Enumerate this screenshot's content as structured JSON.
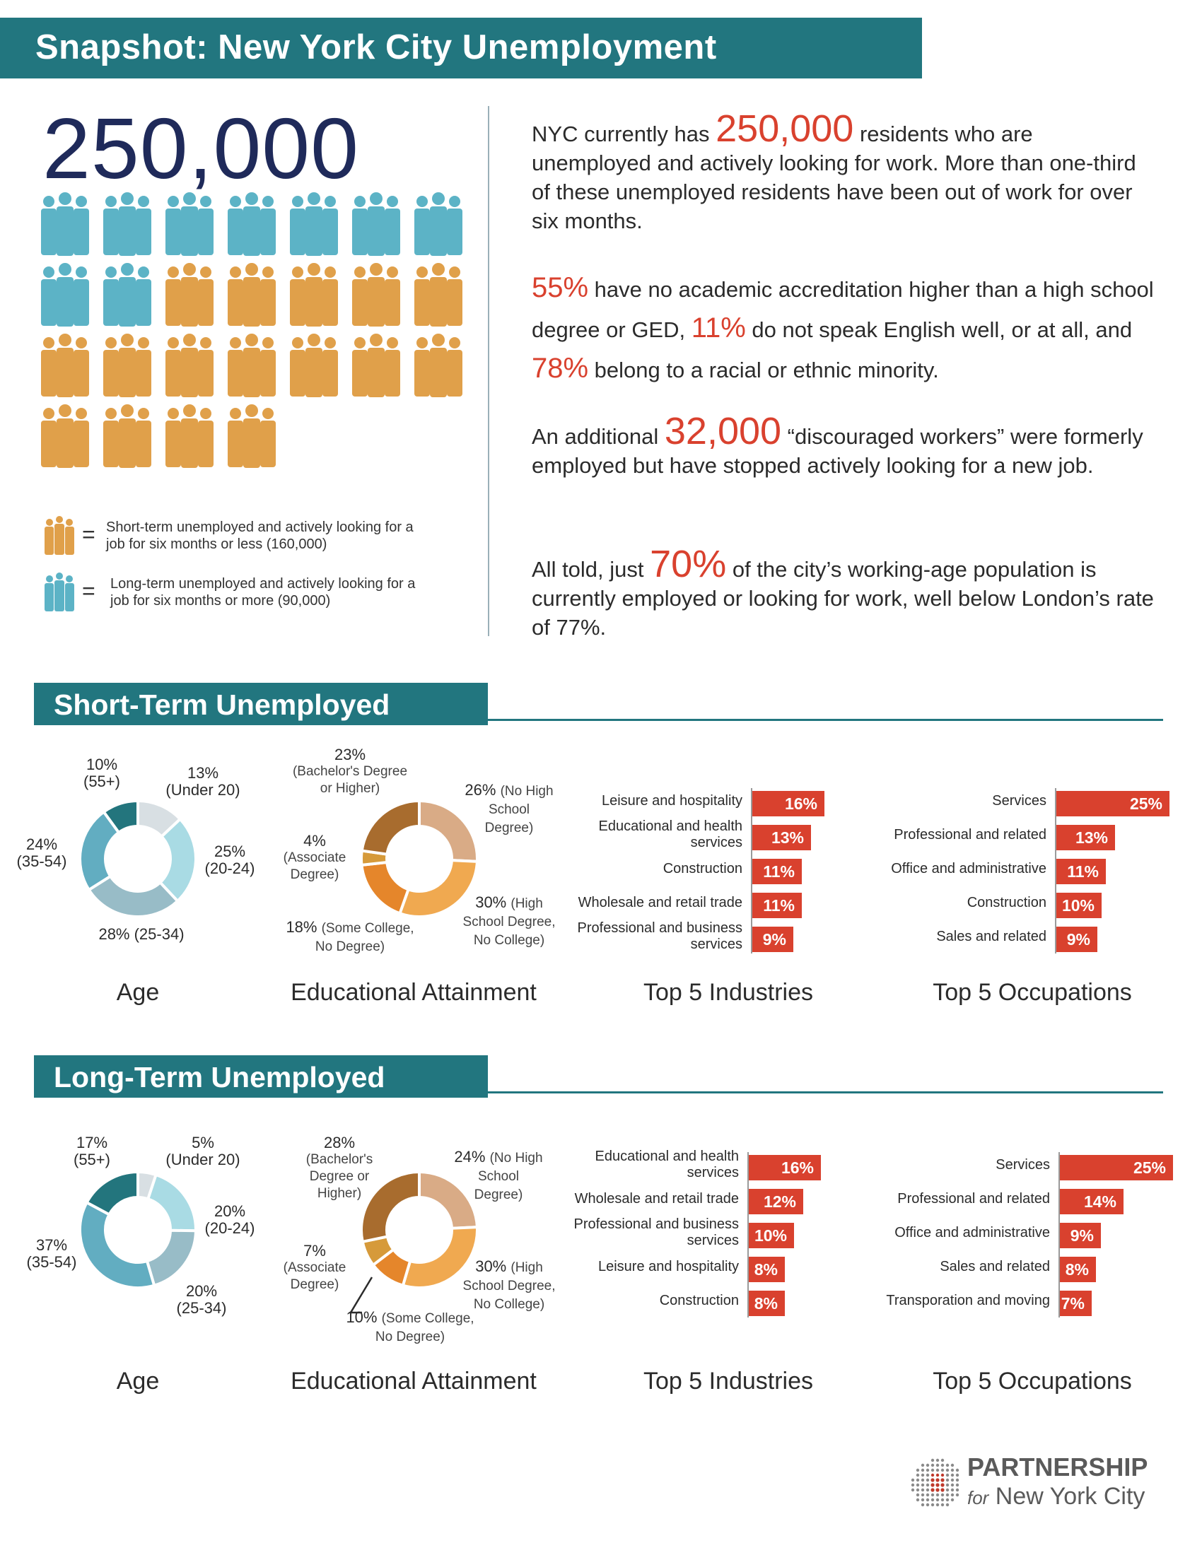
{
  "header": {
    "title": "Snapshot: New York City Unemployment"
  },
  "colors": {
    "teal": "#22767f",
    "blue_person": "#5cb3c6",
    "orange_person": "#e0a04a",
    "red": "#d9412e"
  },
  "big_number": "250,000",
  "people_grid": {
    "total_icons": 25,
    "long_term_icons": 9,
    "short_term_icons": 16,
    "icon": "person-group-icon"
  },
  "legend": {
    "short_term": "Short-term unemployed and actively looking for a job for six months or less (160,000)",
    "long_term": "Long-term unemployed and actively looking for a job for six months or more (90,000)",
    "equals": "="
  },
  "paragraphs": {
    "p1": {
      "a": "NYC currently has ",
      "hl": "250,000",
      "b": " residents who are unemployed and actively looking for work. More than one-third of these unemployed residents have been out of work for over six months."
    },
    "p2": {
      "hl1": "55%",
      "a": " have no academic accreditation higher than a high school degree or GED, ",
      "hl2": "11%",
      "b": " do not speak English well, or at all, and ",
      "hl3": "78%",
      "c": " belong to a racial or ethnic minority."
    },
    "p3": {
      "a": "An additional ",
      "hl": "32,000",
      "b": " “discouraged workers” were formerly employed but have stopped actively looking for a new job."
    },
    "p4": {
      "a": "All told, just ",
      "hl": "70%",
      "b": " of the city’s working-age population is currently employed or looking for work, well below London’s rate of 77%."
    }
  },
  "sections": {
    "short": "Short-Term Unemployed",
    "long": "Long-Term Unemployed"
  },
  "chart_titles": {
    "age": "Age",
    "edu": "Educational Attainment",
    "ind": "Top 5 Industries",
    "occ": "Top 5 Occupations"
  },
  "labels": {
    "s_age": {
      "u20a": "13%",
      "u20b": "(Under 20)",
      "a2024a": "25%",
      "a2024b": "(20-24)",
      "a2534": "28% (25-34)",
      "a3554a": "24%",
      "a3554b": "(35-54)",
      "a55a": "10%",
      "a55b": "(55+)"
    },
    "s_edu": {
      "bach_pct": "23%",
      "bach_txt": "(Bachelor's Degree or Higher)",
      "nohs_pct": "26%",
      "nohs_txt": "(No High School Degree)",
      "hs_pct": "30%",
      "hs_txt": "(High School Degree, No College)",
      "some_pct": "18%",
      "some_txt": "(Some College, No Degree)",
      "assoc_pct": "4%",
      "assoc_txt": "(Associate Degree)"
    },
    "l_age": {
      "u20a": "5%",
      "u20b": "(Under 20)",
      "a2024a": "20%",
      "a2024b": "(20-24)",
      "a2534a": "20%",
      "a2534b": "(25-34)",
      "a3554a": "37%",
      "a3554b": "(35-54)",
      "a55a": "17%",
      "a55b": "(55+)"
    },
    "l_edu": {
      "bach_pct": "28%",
      "bach_txt": "(Bachelor's Degree or Higher)",
      "nohs_pct": "24%",
      "nohs_txt": "(No High School Degree)",
      "hs_pct": "30%",
      "hs_txt": "(High School Degree, No College)",
      "some_pct": "10%",
      "some_txt": "(Some College, No Degree)",
      "assoc_pct": "7%",
      "assoc_txt": "(Associate Degree)"
    }
  },
  "chart_data": [
    {
      "type": "pie",
      "id": "short-age",
      "categories": [
        "Under 20",
        "20-24",
        "25-34",
        "35-54",
        "55+"
      ],
      "values": [
        13,
        25,
        28,
        24,
        10
      ],
      "colors": [
        "#d8dfe3",
        "#a9dbe4",
        "#98bcc7",
        "#62adc1",
        "#23757d"
      ]
    },
    {
      "type": "pie",
      "id": "short-edu",
      "categories": [
        "No High School Degree",
        "High School Degree, No College",
        "Some College, No Degree",
        "Associate Degree",
        "Bachelor's Degree or Higher"
      ],
      "values": [
        26,
        30,
        18,
        4,
        23
      ],
      "colors": [
        "#d9ab86",
        "#f0a950",
        "#e5862b",
        "#d69a3a",
        "#a86c2e"
      ]
    },
    {
      "type": "bar",
      "id": "short-ind",
      "categories": [
        "Leisure and hospitality",
        "Educational and health services",
        "Construction",
        "Wholesale and retail trade",
        "Professional and business services"
      ],
      "values": [
        16,
        13,
        11,
        11,
        9
      ],
      "labels": [
        "16%",
        "13%",
        "11%",
        "11%",
        "9%"
      ]
    },
    {
      "type": "bar",
      "id": "short-occ",
      "categories": [
        "Services",
        "Professional and related",
        "Office and administrative",
        "Construction",
        "Sales and related"
      ],
      "values": [
        25,
        13,
        11,
        10,
        9
      ],
      "labels": [
        "25%",
        "13%",
        "11%",
        "10%",
        "9%"
      ]
    },
    {
      "type": "pie",
      "id": "long-age",
      "categories": [
        "Under 20",
        "20-24",
        "25-34",
        "35-54",
        "55+"
      ],
      "values": [
        5,
        20,
        20,
        37,
        17
      ],
      "colors": [
        "#d8dfe3",
        "#a9dbe4",
        "#98bcc7",
        "#62adc1",
        "#23757d"
      ]
    },
    {
      "type": "pie",
      "id": "long-edu",
      "categories": [
        "No High School Degree",
        "High School Degree, No College",
        "Some College, No Degree",
        "Associate Degree",
        "Bachelor's Degree or Higher"
      ],
      "values": [
        24,
        30,
        10,
        7,
        28
      ],
      "colors": [
        "#d9ab86",
        "#f0a950",
        "#e5862b",
        "#d69a3a",
        "#a86c2e"
      ]
    },
    {
      "type": "bar",
      "id": "long-ind",
      "categories": [
        "Educational and health services",
        "Wholesale and retail trade",
        "Professional and business services",
        "Leisure and hospitality",
        "Construction"
      ],
      "values": [
        16,
        12,
        10,
        8,
        8
      ],
      "labels": [
        "16%",
        "12%",
        "10%",
        "8%",
        "8%"
      ]
    },
    {
      "type": "bar",
      "id": "long-occ",
      "categories": [
        "Services",
        "Professional and related",
        "Office and administrative",
        "Sales and related",
        "Transporation and moving"
      ],
      "values": [
        25,
        14,
        9,
        8,
        7
      ],
      "labels": [
        "25%",
        "14%",
        "9%",
        "8%",
        "7%"
      ]
    }
  ],
  "footer": {
    "logo_line1": "PARTNERSHIP",
    "logo_for": "for",
    "logo_line2": "New York City"
  }
}
